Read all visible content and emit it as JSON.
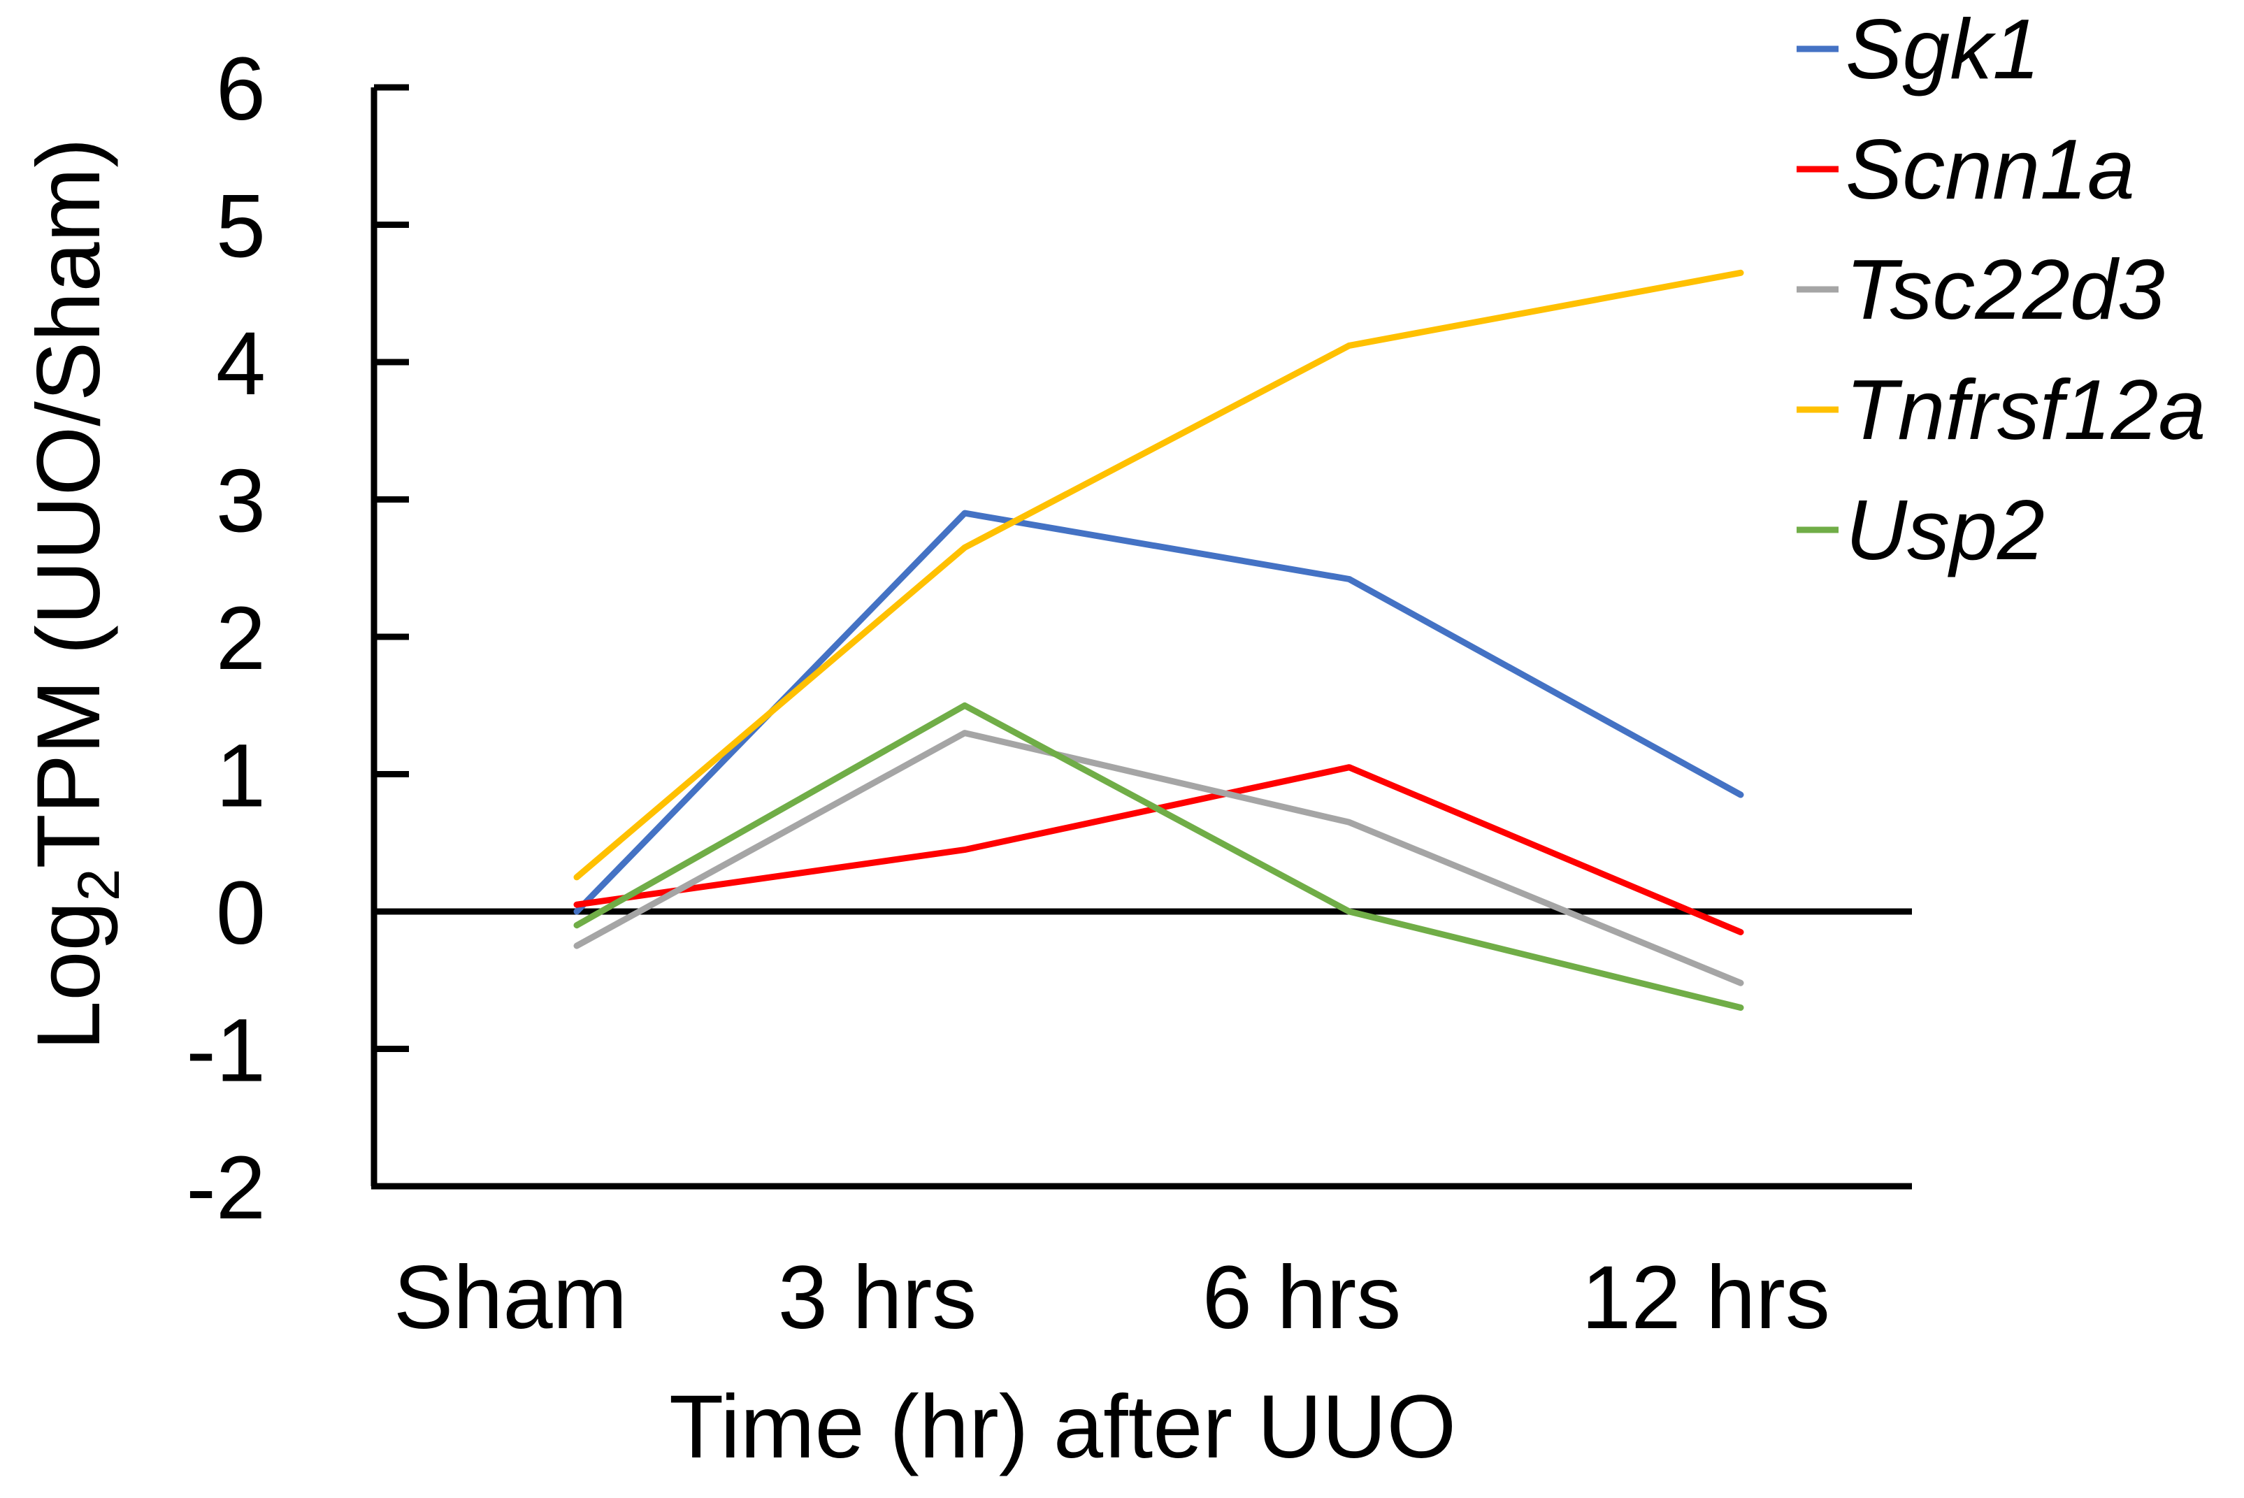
{
  "chart_data": {
    "type": "line",
    "xlabel": "Time (hr) after UUO",
    "ylabel": {
      "prefix": "Log",
      "subscript": "2",
      "suffix": "TPM (UUO/Sham)"
    },
    "categories": [
      "Sham",
      "3 hrs",
      "6 hrs",
      "12 hrs"
    ],
    "ylim": [
      -2,
      6
    ],
    "yticks": [
      "-2",
      "-1",
      "0",
      "1",
      "2",
      "3",
      "4",
      "5",
      "6"
    ],
    "ytick_values": [
      -2,
      -1,
      0,
      1,
      2,
      3,
      4,
      5,
      6
    ],
    "legend_position": "top-right",
    "grid": false,
    "series": [
      {
        "name": "Sgk1",
        "color": "#4472C4",
        "values": [
          0.0,
          2.9,
          2.42,
          0.85
        ]
      },
      {
        "name": "Scnn1a",
        "color": "#FF0000",
        "values": [
          0.05,
          0.45,
          1.05,
          -0.15
        ]
      },
      {
        "name": "Tsc22d3",
        "color": "#A5A5A5",
        "values": [
          -0.25,
          1.3,
          0.65,
          -0.52
        ]
      },
      {
        "name": "Tnfrsf12a",
        "color": "#FFC000",
        "values": [
          0.25,
          2.65,
          4.12,
          4.65
        ]
      },
      {
        "name": "Usp2",
        "color": "#70AD47",
        "values": [
          -0.1,
          1.5,
          0.0,
          -0.7
        ]
      }
    ]
  }
}
